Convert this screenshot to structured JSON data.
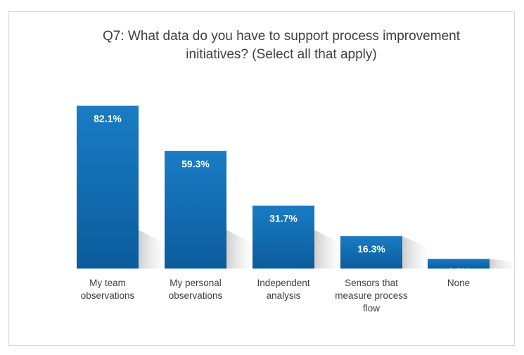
{
  "chart_data": {
    "type": "bar",
    "title_line1": "Q7: What data do you have to support process improvement",
    "title_line2": "initiatives? (Select all that apply)",
    "categories": [
      [
        "My team",
        "observations"
      ],
      [
        "My personal",
        "observations"
      ],
      [
        "Independent",
        "analysis"
      ],
      [
        "Sensors that",
        "measure process",
        "flow"
      ],
      [
        "None"
      ]
    ],
    "values": [
      82.1,
      59.3,
      31.7,
      16.3,
      4.9
    ],
    "value_labels": [
      "82.1%",
      "59.3%",
      "31.7%",
      "16.3%",
      "4.9%"
    ],
    "ylim": [
      0,
      100
    ],
    "grid": false,
    "legend": "none",
    "bar_color_top": "#1a7cc4",
    "bar_color_bottom": "#0b5c9c"
  }
}
